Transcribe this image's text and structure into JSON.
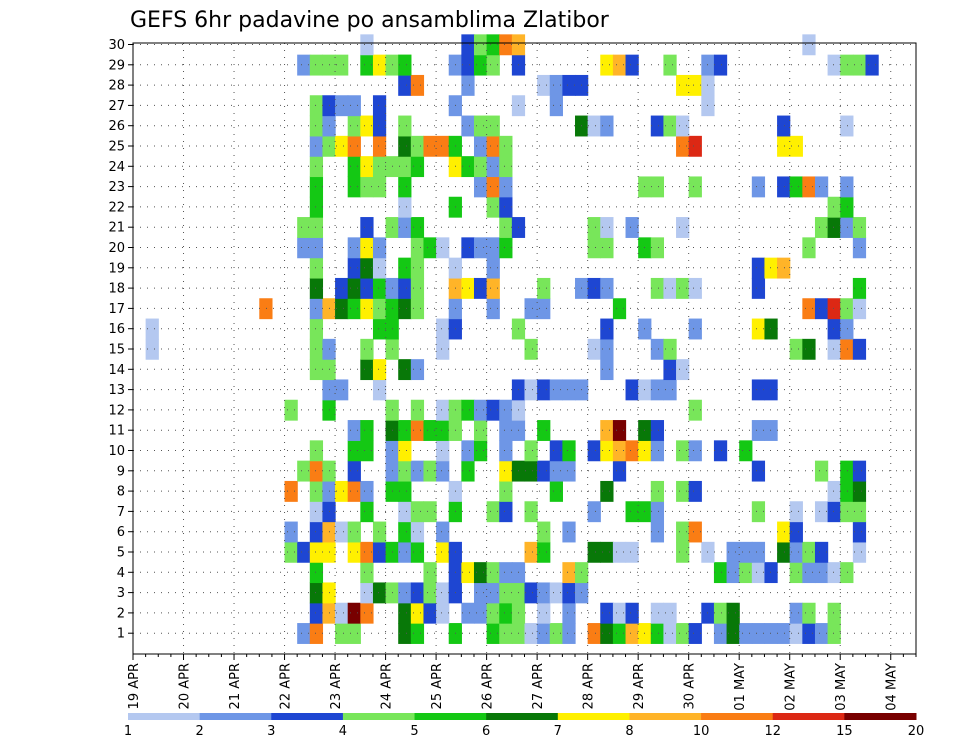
{
  "chart_data": {
    "type": "heatmap",
    "title": "GEFS 6hr padavine po ansamblima Zlatibor",
    "xlabel": "",
    "ylabel": "",
    "y_range": [
      1,
      30
    ],
    "y_ticks": [
      "1",
      "2",
      "3",
      "4",
      "5",
      "6",
      "7",
      "8",
      "9",
      "10",
      "11",
      "12",
      "13",
      "14",
      "15",
      "16",
      "17",
      "18",
      "19",
      "20",
      "21",
      "22",
      "23",
      "24",
      "25",
      "26",
      "27",
      "28",
      "29",
      "30"
    ],
    "x_steps_total": 62,
    "x_ticks": [
      {
        "label": "19 APR",
        "step": 0
      },
      {
        "label": "20 APR",
        "step": 4
      },
      {
        "label": "21 APR",
        "step": 8
      },
      {
        "label": "22 APR",
        "step": 12
      },
      {
        "label": "23 APR",
        "step": 16
      },
      {
        "label": "24 APR",
        "step": 20
      },
      {
        "label": "25 APR",
        "step": 24
      },
      {
        "label": "26 APR",
        "step": 28
      },
      {
        "label": "27 APR",
        "step": 32
      },
      {
        "label": "28 APR",
        "step": 36
      },
      {
        "label": "29 APR",
        "step": 40
      },
      {
        "label": "30 APR",
        "step": 44
      },
      {
        "label": "01 MAY",
        "step": 48
      },
      {
        "label": "02 MAY",
        "step": 52
      },
      {
        "label": "03 MAY",
        "step": 56
      },
      {
        "label": "04 MAY",
        "step": 60
      }
    ],
    "grid": true,
    "legend_position": "bottom",
    "colorbar": {
      "labels": [
        "1",
        "2",
        "3",
        "4",
        "5",
        "6",
        "7",
        "8",
        "10",
        "12",
        "15",
        "20"
      ],
      "colors": [
        "#b4c8f0",
        "#6e96e6",
        "#1e46d2",
        "#78e65a",
        "#14c814",
        "#087808",
        "#fff000",
        "#ffb428",
        "#fa7d14",
        "#dc2814",
        "#780000"
      ]
    },
    "rows": {
      "30": "0:18,2:26,3:27,4:28,8:29,7:30,0:53",
      "29": "1:13,3:14,3:15,3:16,4:18,6:19,3:20,3:21,4:21,1:25,2:26,4:27,3:28,2:30,6:37,7:38,2:39,3:42,1:45,2:46,0:55,3:56,3:57,2:58",
      "28": "2:21,8:22,1:26,0:32,1:33,2:34,2:35,6:43,6:44,0:45",
      "27": "3:14,2:15,1:16,1:17,2:19,1:25,0:30,1:33,0:45",
      "26": "3:14,1:15,3:17,6:18,2:19,3:21,1:26,3:27,3:28,5:35,0:36,1:37,2:41,3:42,0:43,2:51,0:56",
      "25": "1:14,3:15,6:16,8:17,8:19,5:21,3:22,8:23,8:24,4:25,1:27,8:28,3:29,8:43,9:44,6:51,6:52",
      "24": "3:14,4:17,6:18,3:19,3:20,3:21,4:22,6:25,4:26,3:27,1:28,3:29",
      "23": "4:14,4:17,3:18,3:19,4:21,1:27,8:28,1:29,3:40,3:41,3:44,1:49,2:51,4:52,8:53,1:54,1:56",
      "22": "4:14,0:21,4:25,3:28,2:29,3:55,4:56",
      "21": "3:13,3:14,2:18,3:20,1:21,4:22,3:29,2:30,3:36,0:37,1:39,0:43,3:54,5:55,1:56,3:57",
      "20": "1:13,1:14,1:17,6:18,1:19,3:22,4:23,0:24,2:26,1:27,1:28,4:29,3:36,3:37,4:40,3:41,3:53,1:57",
      "19": "3:14,2:17,5:18,0:19,4:21,3:22,0:25,1:28,2:49,6:50,7:51",
      "18": "5:14,2:16,5:17,2:18,4:19,1:20,2:21,3:22,7:25,6:26,2:27,7:28,3:32,1:35,2:36,1:37,3:41,0:42,3:43,0:44,2:49,4:57",
      "17": "8:10,1:14,7:15,5:16,4:17,6:18,3:19,4:20,5:21,3:22,1:25,1:28,1:31,1:32,4:38,8:53,2:54,9:55,3:56,0:57",
      "16": "0:1,3:14,4:19,4:20,0:24,2:25,3:30,2:37,1:40,1:44,6:49,5:50,2:55,1:56",
      "15": "0:1,3:14,1:15,3:18,3:20,0:24,3:31,0:36,1:37,1:41,3:42,3:52,5:53,0:55,8:56,2:57",
      "14": "3:14,3:15,5:18,6:19,5:21,1:22,1:37,2:42,0:43",
      "13": "1:15,1:16,0:19,2:30,0:31,2:32,1:33,1:34,1:35,2:39,0:40,1:41,1:42,2:49,2:50",
      "12": "3:12,4:15,3:20,3:22,0:24,3:25,4:26,1:27,2:28,1:29,0:30,3:44",
      "11": "1:17,4:18,5:20,4:21,8:22,4:23,4:24,3:25,3:27,1:29,1:30,4:32,7:37,10:38,5:40,2:41,1:49,1:50",
      "10": "3:14,4:17,4:18,1:20,6:21,0:24,1:26,4:27,1:29,3:31,2:33,4:34,2:36,6:37,7:38,8:39,6:40,1:41,3:43,1:44,2:46,4:48",
      "9": "3:13,8:14,3:15,2:17,1:20,3:21,1:22,3:23,1:24,4:26,6:29,5:30,5:31,2:32,1:33,1:34,2:38,2:49,3:54,4:56,2:57",
      "8": "8:12,3:14,1:15,6:16,8:17,1:18,4:20,4:21,0:25,3:29,4:33,5:37,3:41,3:43,2:44,0:55,4:56,5:57",
      "7": "0:14,2:15,4:18,0:21,3:22,3:23,4:25,3:28,2:29,3:31,1:36,4:39,4:40,1:41,3:49,0:52,0:54,2:55,3:56,3:57",
      "6": "1:12,2:14,7:15,0:16,3:17,3:19,4:21,0:22,1:24,3:32,1:34,1:41,3:43,8:44,6:51,2:52,2:57",
      "5": "3:12,2:13,6:14,6:15,6:17,8:18,2:19,4:20,1:21,4:22,6:24,2:25,7:31,4:32,5:36,5:37,0:38,0:39,3:43,0:45,1:47,1:48,1:49,5:51,1:52,3:53,2:54,0:57",
      "4": "4:14,3:18,3:23,2:25,6:26,5:27,3:28,1:29,1:30,7:34,3:35,4:46,1:47,3:48,0:49,2:50,3:52,1:53,1:54,0:55,3:56",
      "3": "5:14,6:15,0:18,5:19,3:20,1:21,2:22,3:23,0:24,2:25,1:27,1:28,3:29,3:30,2:31,1:32,0:33,2:34,1:35",
      "2": "2:14,7:15,0:16,10:17,8:18,5:21,6:22,2:23,0:24,1:26,1:27,3:28,4:29,3:30,0:32,1:34,2:37,0:38,2:39,0:41,0:42,2:45,3:46,5:47,1:52,3:53,3:55",
      "1": "1:13,8:14,3:16,3:17,5:21,4:22,4:25,4:28,3:29,3:30,0:31,1:32,3:33,1:34,8:36,5:37,4:38,7:39,6:40,4:41,0:42,3:43,2:44,1:46,5:47,1:48,1:49,1:50,1:51,0:52,2:53,1:54,3:55"
    }
  }
}
